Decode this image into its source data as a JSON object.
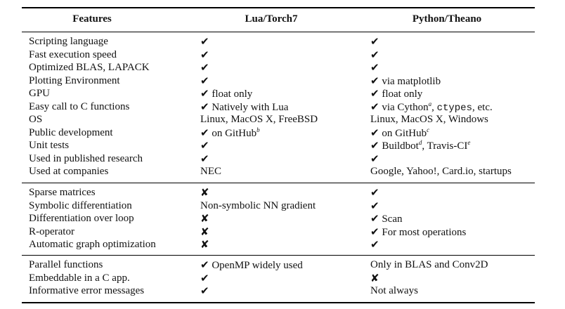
{
  "headers": {
    "features": "Features",
    "lua": "Lua/Torch7",
    "python": "Python/Theano"
  },
  "check": "✔",
  "cross": "✘",
  "groups": [
    [
      {
        "f": "Scripting language",
        "l": [
          {
            "c": 1
          }
        ],
        "p": [
          {
            "c": 1
          }
        ]
      },
      {
        "f": "Fast execution speed",
        "l": [
          {
            "c": 1
          }
        ],
        "p": [
          {
            "c": 1
          }
        ]
      },
      {
        "f": "Optimized BLAS, LAPACK",
        "l": [
          {
            "c": 1
          }
        ],
        "p": [
          {
            "c": 1
          }
        ]
      },
      {
        "f": "Plotting Environment",
        "l": [
          {
            "c": 1
          }
        ],
        "p": [
          {
            "c": 1
          },
          {
            "t": " via matplotlib"
          }
        ]
      },
      {
        "f": "GPU",
        "l": [
          {
            "c": 1
          },
          {
            "t": " float only"
          }
        ],
        "p": [
          {
            "c": 1
          },
          {
            "t": " float only"
          }
        ]
      },
      {
        "f": "Easy call to C functions",
        "l": [
          {
            "c": 1
          },
          {
            "t": " Natively with Lua"
          }
        ],
        "p": [
          {
            "c": 1
          },
          {
            "t": " via Cython"
          },
          {
            "s": "a"
          },
          {
            "t": ", "
          },
          {
            "m": "ctypes"
          },
          {
            "t": ", etc."
          }
        ]
      },
      {
        "f": "OS",
        "l": [
          {
            "t": "Linux, MacOS X, FreeBSD"
          }
        ],
        "p": [
          {
            "t": "Linux, MacOS X, Windows"
          }
        ]
      },
      {
        "f": "Public development",
        "l": [
          {
            "c": 1
          },
          {
            "t": " on GitHub"
          },
          {
            "s": "b"
          }
        ],
        "p": [
          {
            "c": 1
          },
          {
            "t": " on GitHub"
          },
          {
            "s": "c"
          }
        ]
      },
      {
        "f": "Unit tests",
        "l": [
          {
            "c": 1
          }
        ],
        "p": [
          {
            "c": 1
          },
          {
            "t": " Buildbot"
          },
          {
            "s": "d"
          },
          {
            "t": ", Travis-CI"
          },
          {
            "s": "e"
          }
        ]
      },
      {
        "f": "Used in published research",
        "l": [
          {
            "c": 1
          }
        ],
        "p": [
          {
            "c": 1
          }
        ]
      },
      {
        "f": "Used at companies",
        "l": [
          {
            "t": "NEC"
          }
        ],
        "p": [
          {
            "t": "Google, Yahoo!, Card.io, startups"
          }
        ]
      }
    ],
    [
      {
        "f": "Sparse matrices",
        "l": [
          {
            "x": 1
          }
        ],
        "p": [
          {
            "c": 1
          }
        ]
      },
      {
        "f": "Symbolic differentiation",
        "l": [
          {
            "t": "Non-symbolic NN gradient"
          }
        ],
        "p": [
          {
            "c": 1
          }
        ]
      },
      {
        "f": "Differentiation over loop",
        "l": [
          {
            "x": 1
          }
        ],
        "p": [
          {
            "c": 1
          },
          {
            "t": " Scan"
          }
        ]
      },
      {
        "f": "R-operator",
        "l": [
          {
            "x": 1
          }
        ],
        "p": [
          {
            "c": 1
          },
          {
            "t": " For most operations"
          }
        ]
      },
      {
        "f": "Automatic graph optimization",
        "l": [
          {
            "x": 1
          }
        ],
        "p": [
          {
            "c": 1
          }
        ]
      }
    ],
    [
      {
        "f": "Parallel functions",
        "l": [
          {
            "c": 1
          },
          {
            "t": " OpenMP widely used"
          }
        ],
        "p": [
          {
            "t": "Only in BLAS and Conv2D"
          }
        ]
      },
      {
        "f": "Embeddable in a C app.",
        "l": [
          {
            "c": 1
          }
        ],
        "p": [
          {
            "x": 1
          }
        ]
      },
      {
        "f": "Informative error messages",
        "l": [
          {
            "c": 1
          }
        ],
        "p": [
          {
            "t": "Not always"
          }
        ]
      }
    ]
  ]
}
